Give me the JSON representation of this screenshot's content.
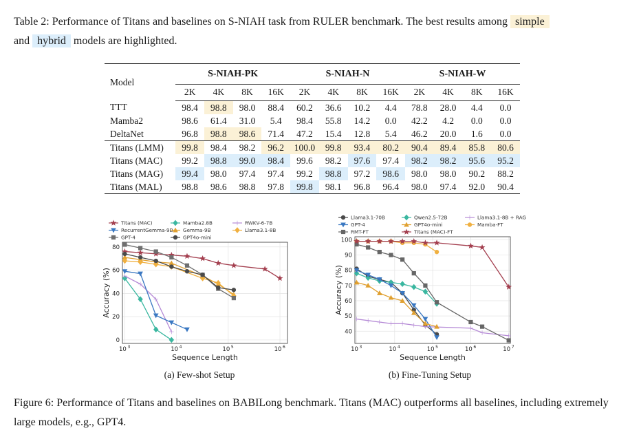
{
  "table": {
    "caption_line1": "Table 2: Performance of Titans and baselines on S-NIAH task from RULER benchmark. The best results among",
    "caption_simple": "simple",
    "caption_and": "and",
    "caption_hybrid": "hybrid",
    "caption_end": "models are highlighted.",
    "model_header": "Model",
    "groups": [
      "S-NIAH-PK",
      "S-NIAH-N",
      "S-NIAH-W"
    ],
    "subheaders": [
      "2K",
      "4K",
      "8K",
      "16K",
      "2K",
      "4K",
      "8K",
      "16K",
      "2K",
      "4K",
      "8K",
      "16K"
    ],
    "rows": [
      {
        "model": "TTT",
        "values": [
          "98.4",
          "98.8",
          "98.0",
          "88.4",
          "60.2",
          "36.6",
          "10.2",
          "4.4",
          "78.8",
          "28.0",
          "4.4",
          "0.0"
        ],
        "hl": [
          "",
          "s",
          "",
          "",
          "",
          "",
          "",
          "",
          "",
          "",
          "",
          ""
        ]
      },
      {
        "model": "Mamba2",
        "values": [
          "98.6",
          "61.4",
          "31.0",
          "5.4",
          "98.4",
          "55.8",
          "14.2",
          "0.0",
          "42.2",
          "4.2",
          "0.0",
          "0.0"
        ],
        "hl": [
          "",
          "",
          "",
          "",
          "",
          "",
          "",
          "",
          "",
          "",
          "",
          ""
        ]
      },
      {
        "model": "DeltaNet",
        "values": [
          "96.8",
          "98.8",
          "98.6",
          "71.4",
          "47.2",
          "15.4",
          "12.8",
          "5.4",
          "46.2",
          "20.0",
          "1.6",
          "0.0"
        ],
        "hl": [
          "",
          "s",
          "s",
          "",
          "",
          "",
          "",
          "",
          "",
          "",
          "",
          ""
        ]
      },
      {
        "model": "Titans (LMM)",
        "values": [
          "99.8",
          "98.4",
          "98.2",
          "96.2",
          "100.0",
          "99.8",
          "93.4",
          "80.2",
          "90.4",
          "89.4",
          "85.8",
          "80.6"
        ],
        "hl": [
          "s",
          "",
          "",
          "s",
          "s",
          "s",
          "s",
          "s",
          "s",
          "s",
          "s",
          "s"
        ]
      },
      {
        "model": "Titans (MAC)",
        "values": [
          "99.2",
          "98.8",
          "99.0",
          "98.4",
          "99.6",
          "98.2",
          "97.6",
          "97.4",
          "98.2",
          "98.2",
          "95.6",
          "95.2"
        ],
        "hl": [
          "",
          "h",
          "h",
          "h",
          "",
          "",
          "h",
          "",
          "h",
          "h",
          "h",
          "h"
        ]
      },
      {
        "model": "Titans (MAG)",
        "values": [
          "99.4",
          "98.0",
          "97.4",
          "97.4",
          "99.2",
          "98.8",
          "97.2",
          "98.6",
          "98.0",
          "98.0",
          "90.2",
          "88.2"
        ],
        "hl": [
          "h",
          "",
          "",
          "",
          "",
          "h",
          "",
          "h",
          "",
          "",
          "",
          ""
        ]
      },
      {
        "model": "Titans (MAL)",
        "values": [
          "98.8",
          "98.6",
          "98.8",
          "97.8",
          "99.8",
          "98.1",
          "96.8",
          "96.4",
          "98.0",
          "97.4",
          "92.0",
          "90.4"
        ],
        "hl": [
          "",
          "",
          "",
          "",
          "h",
          "",
          "",
          "",
          "",
          "",
          "",
          ""
        ]
      }
    ]
  },
  "figure": {
    "caption": "Figure 6: Performance of Titans and baselines on BABILong benchmark. Titans (MAC) outperforms all baselines, including extremely large models, e.g., GPT4.",
    "subcaption_a": "(a) Few-shot Setup",
    "subcaption_b": "(b) Fine-Tuning Setup"
  },
  "chart_data": [
    {
      "type": "line",
      "title": "Few-shot Setup",
      "xlabel": "Sequence Length",
      "ylabel": "Accuracy (%)",
      "xscale": "log",
      "xlim": [
        900,
        1400000
      ],
      "ylim": [
        -3,
        84
      ],
      "xticks": [
        {
          "v": 1000,
          "label": "10",
          "sup": "3"
        },
        {
          "v": 10000,
          "label": "10",
          "sup": "4"
        },
        {
          "v": 100000,
          "label": "10",
          "sup": "5"
        },
        {
          "v": 1000000,
          "label": "10",
          "sup": "6"
        }
      ],
      "yticks": [
        0,
        20,
        40,
        60,
        80
      ],
      "legend_cols": 3,
      "series": [
        {
          "name": "Titans (MAC)",
          "color": "#a33e4e",
          "marker": "star",
          "x": [
            1000,
            2000,
            4000,
            8000,
            16000,
            32000,
            64000,
            128000,
            512000,
            1000000
          ],
          "y": [
            76,
            75,
            74,
            73,
            72,
            70,
            66,
            64,
            61,
            53
          ]
        },
        {
          "name": "Mamba2.8B",
          "color": "#3ab7a0",
          "marker": "diamond",
          "x": [
            1000,
            2000,
            4000,
            8000
          ],
          "y": [
            53,
            35,
            9,
            0
          ]
        },
        {
          "name": "RWKV-6-7B",
          "color": "#b58ad6",
          "marker": "plus",
          "x": [
            1000,
            2000,
            4000,
            8000
          ],
          "y": [
            55,
            48,
            35,
            7
          ]
        },
        {
          "name": "RecurrentGemma-9B",
          "color": "#3a78c2",
          "marker": "tri_down",
          "x": [
            1000,
            2000,
            4000,
            8000,
            16000
          ],
          "y": [
            59,
            57,
            21,
            15,
            9
          ]
        },
        {
          "name": "Gemma-9B",
          "color": "#e0a030",
          "marker": "tri_up",
          "x": [
            1000,
            2000,
            4000,
            8000,
            32000,
            64000,
            128000
          ],
          "y": [
            71,
            69,
            67,
            66,
            55,
            48,
            39
          ]
        },
        {
          "name": "Llama3.1-8B",
          "color": "#f0b040",
          "marker": "diamond",
          "x": [
            1000,
            2000,
            4000,
            8000,
            32000,
            64000,
            128000
          ],
          "y": [
            68,
            67,
            65,
            63,
            53,
            49,
            38
          ]
        },
        {
          "name": "GPT-4",
          "color": "#6f6f6f",
          "marker": "square",
          "x": [
            1000,
            2000,
            4000,
            8000,
            16000,
            32000,
            64000,
            128000
          ],
          "y": [
            82,
            79,
            76,
            71,
            64,
            56,
            44,
            36
          ]
        },
        {
          "name": "GPT4o-mini",
          "color": "#4a4a4a",
          "marker": "circle",
          "x": [
            1000,
            2000,
            4000,
            8000,
            16000,
            32000,
            64000,
            128000
          ],
          "y": [
            74,
            71,
            68,
            63,
            59,
            56,
            45,
            43
          ]
        }
      ]
    },
    {
      "type": "line",
      "title": "Fine-Tuning Setup",
      "xlabel": "Sequence Length",
      "ylabel": "Accuracy (%)",
      "xscale": "log",
      "xlim": [
        900,
        11000000
      ],
      "ylim": [
        32,
        102
      ],
      "xticks": [
        {
          "v": 1000,
          "label": "10",
          "sup": "3"
        },
        {
          "v": 10000,
          "label": "10",
          "sup": "4"
        },
        {
          "v": 100000,
          "label": "10",
          "sup": "5"
        },
        {
          "v": 1000000,
          "label": "10",
          "sup": "6"
        },
        {
          "v": 10000000,
          "label": "10",
          "sup": "7"
        }
      ],
      "yticks": [
        40,
        50,
        60,
        70,
        80,
        90,
        100
      ],
      "legend_cols": 3,
      "series": [
        {
          "name": "Llama3.1-70B",
          "color": "#4a4a4a",
          "marker": "circle",
          "x": [
            1000,
            2000,
            4000,
            8000,
            16000,
            32000,
            64000,
            128000
          ],
          "y": [
            81,
            76,
            74,
            72,
            65,
            54,
            44,
            38
          ]
        },
        {
          "name": "Qwen2.5-72B",
          "color": "#3ab7a0",
          "marker": "diamond",
          "x": [
            1000,
            2000,
            4000,
            8000,
            16000,
            32000,
            64000,
            128000
          ],
          "y": [
            78,
            75,
            73,
            72,
            71,
            69,
            66,
            58
          ]
        },
        {
          "name": "Llama3.1-8B + RAG",
          "color": "#b58ad6",
          "marker": "plus",
          "x": [
            1000,
            2000,
            4000,
            8000,
            16000,
            32000,
            64000,
            1000000,
            2000000,
            10000000
          ],
          "y": [
            48,
            47,
            46,
            45,
            45,
            44,
            43,
            42,
            39,
            37
          ]
        },
        {
          "name": "GPT-4",
          "color": "#3a78c2",
          "marker": "tri_down",
          "x": [
            1000,
            2000,
            4000,
            8000,
            16000,
            32000,
            64000,
            128000
          ],
          "y": [
            80,
            77,
            74,
            70,
            65,
            57,
            48,
            36
          ]
        },
        {
          "name": "GPT4o-mini",
          "color": "#e0a030",
          "marker": "tri_up",
          "x": [
            1000,
            2000,
            4000,
            8000,
            16000,
            32000,
            64000,
            128000
          ],
          "y": [
            72,
            70,
            65,
            62,
            60,
            52,
            45,
            43
          ]
        },
        {
          "name": "Mamba-FT",
          "color": "#f0b040",
          "marker": "circle",
          "x": [
            1000,
            2000,
            4000,
            8000,
            16000,
            32000,
            64000,
            128000
          ],
          "y": [
            99,
            99,
            99,
            99,
            98,
            98,
            97,
            92
          ]
        },
        {
          "name": "RMT-FT",
          "color": "#666666",
          "marker": "square",
          "x": [
            1000,
            2000,
            4000,
            8000,
            16000,
            32000,
            64000,
            128000,
            1000000,
            2000000,
            10000000
          ],
          "y": [
            97,
            95,
            92,
            90,
            87,
            78,
            70,
            59,
            46,
            43,
            34
          ]
        },
        {
          "name": "Titans (MAC)-FT",
          "color": "#a33e4e",
          "marker": "star",
          "x": [
            1000,
            2000,
            4000,
            8000,
            16000,
            32000,
            64000,
            128000,
            1000000,
            2000000,
            10000000
          ],
          "y": [
            99,
            99,
            99,
            99,
            99,
            99,
            98,
            98,
            96,
            95,
            69
          ]
        }
      ]
    }
  ]
}
